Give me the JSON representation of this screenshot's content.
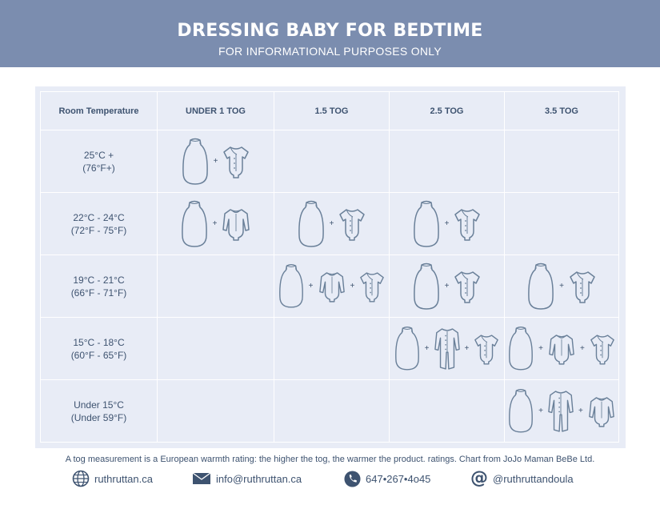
{
  "header": {
    "title": "DRESSING BABY FOR BEDTIME",
    "subtitle": "FOR INFORMATIONAL PURPOSES ONLY"
  },
  "table": {
    "columns": [
      "Room Temperature",
      "UNDER 1 TOG",
      "1.5 TOG",
      "2.5 TOG",
      "3.5 TOG"
    ],
    "rows": [
      {
        "temp_c": "25°C +",
        "temp_f": "(76°F+)",
        "cells": [
          [
            "sleepbag",
            "bodysuit-short"
          ],
          [],
          [],
          []
        ]
      },
      {
        "temp_c": "22°C - 24°C",
        "temp_f": "(72°F - 75°F)",
        "cells": [
          [
            "sleepbag",
            "bodysuit-long"
          ],
          [
            "sleepbag",
            "bodysuit-short"
          ],
          [
            "sleepbag",
            "bodysuit-short"
          ],
          []
        ]
      },
      {
        "temp_c": "19°C - 21°C",
        "temp_f": "(66°F - 71°F)",
        "cells": [
          [],
          [
            "sleepbag",
            "bodysuit-long",
            "bodysuit-short"
          ],
          [
            "sleepbag",
            "bodysuit-short"
          ],
          [
            "sleepbag",
            "bodysuit-short"
          ]
        ]
      },
      {
        "temp_c": "15°C - 18°C",
        "temp_f": "(60°F - 65°F)",
        "cells": [
          [],
          [],
          [
            "sleepbag",
            "sleepsuit",
            "bodysuit-short"
          ],
          [
            "sleepbag",
            "bodysuit-long",
            "bodysuit-short"
          ]
        ]
      },
      {
        "temp_c": "Under 15°C",
        "temp_f": "(Under 59°F)",
        "cells": [
          [],
          [],
          [],
          [
            "sleepbag",
            "sleepsuit",
            "bodysuit-long"
          ]
        ]
      }
    ]
  },
  "plus_sign": "+",
  "caption": "A tog measurement is a European warmth rating: the higher the tog, the warmer the product. ratings. Chart from JoJo Maman BeBe Ltd.",
  "contact": {
    "website": "ruthruttan.ca",
    "email": "info@ruthruttan.ca",
    "phone": "647•267•4o45",
    "social": "@ruthruttandoula"
  },
  "colors": {
    "header_bg": "#7b8daf",
    "table_bg": "#e8ecf6",
    "text": "#3e5370",
    "icon_stroke": "#6a8099"
  }
}
